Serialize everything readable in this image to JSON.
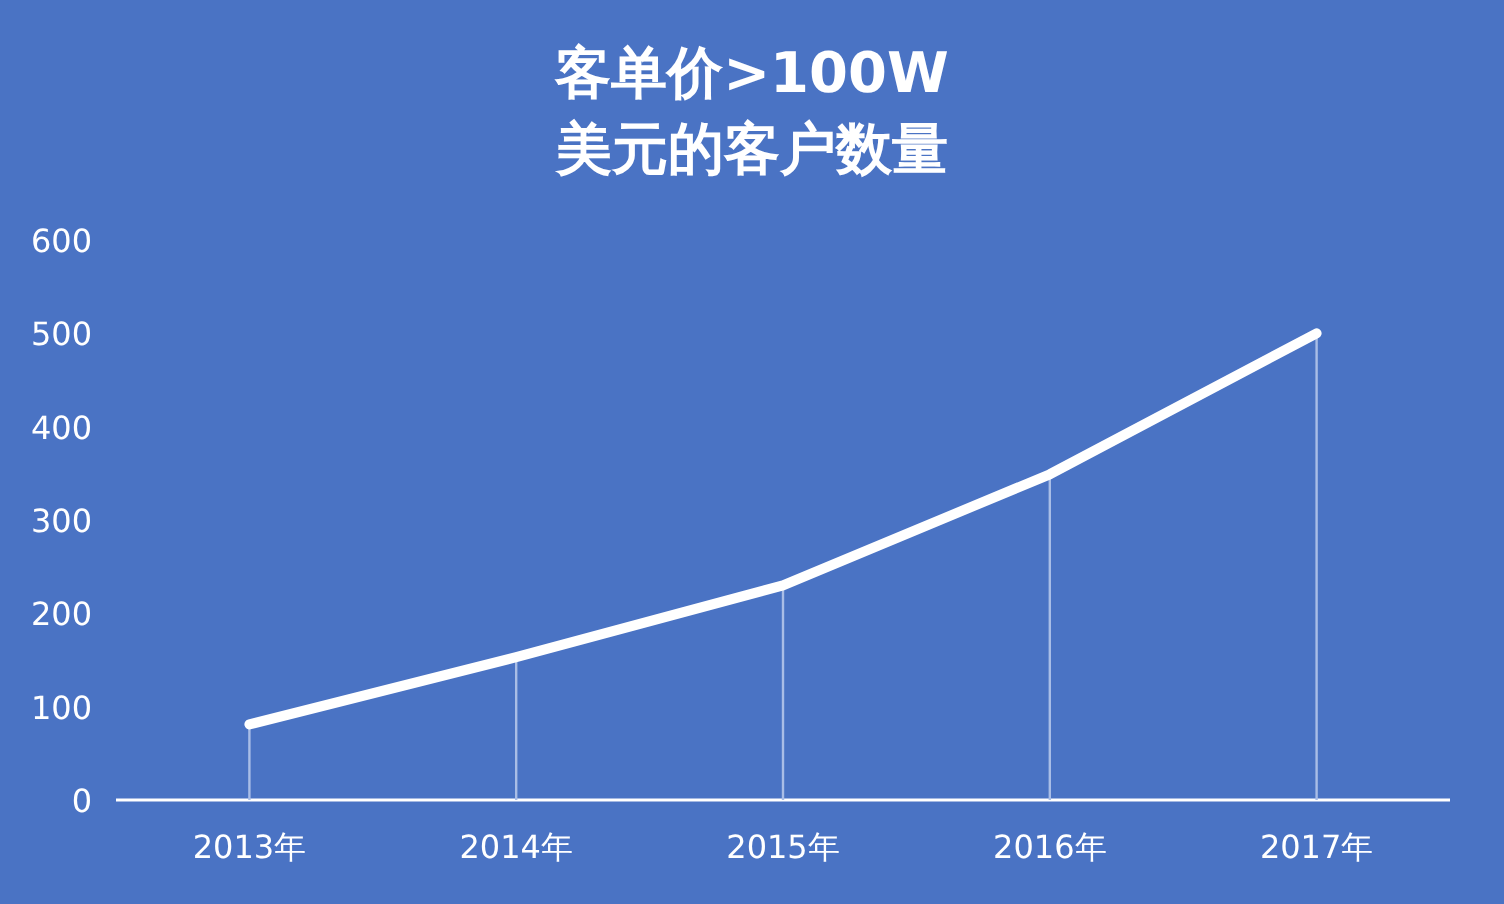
{
  "chart_data": {
    "type": "line",
    "title": "客单价>100W\n美元的客户数量",
    "categories": [
      "2013年",
      "2014年",
      "2015年",
      "2016年",
      "2017年"
    ],
    "series": [
      {
        "type": "bar",
        "color": "#a9bde6",
        "values": [
          81,
          153,
          230,
          349,
          500
        ]
      },
      {
        "color": "#ffffff",
        "values": [
          81,
          153,
          230,
          349,
          500
        ]
      }
    ],
    "ylim": [
      0,
      600
    ],
    "yticks": [
      0,
      100,
      200,
      300,
      400,
      500,
      600
    ],
    "grid": false,
    "marker": "none",
    "line_style": "solid"
  }
}
